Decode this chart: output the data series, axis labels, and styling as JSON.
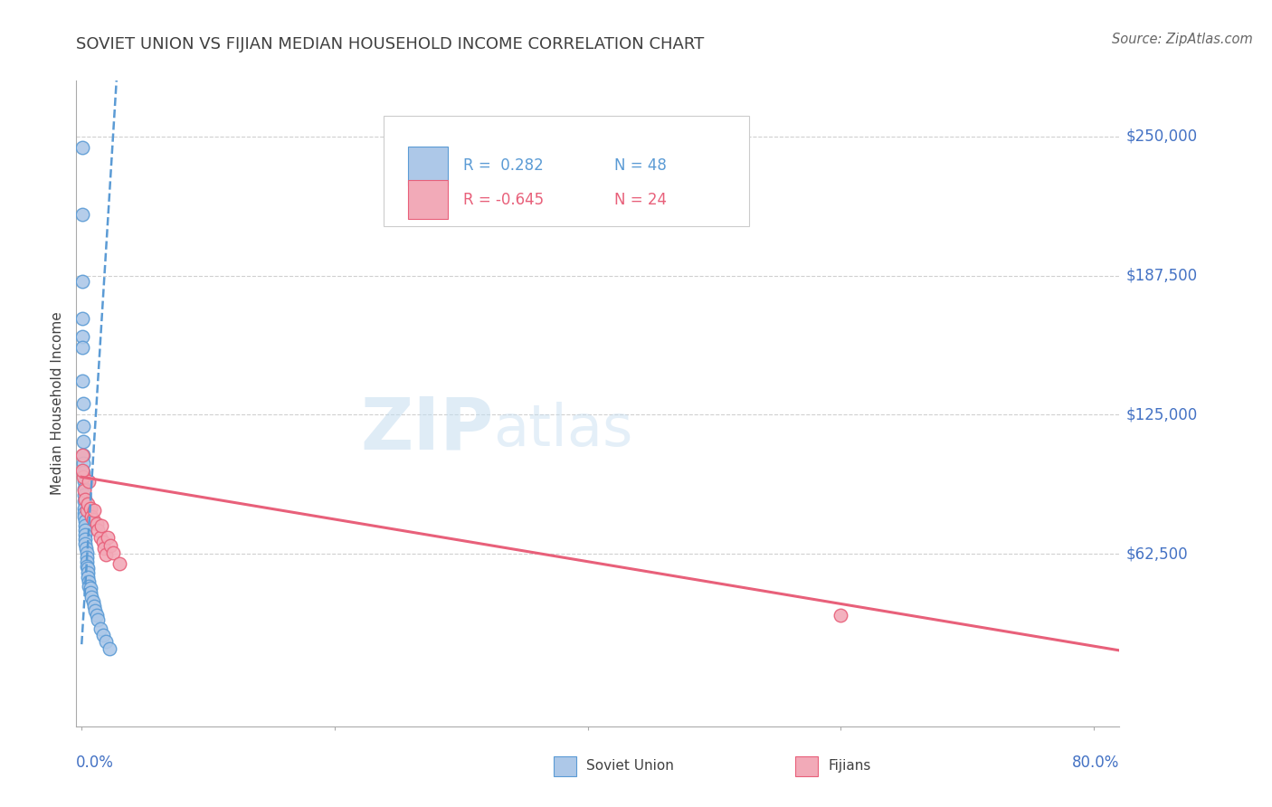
{
  "title": "SOVIET UNION VS FIJIAN MEDIAN HOUSEHOLD INCOME CORRELATION CHART",
  "source": "Source: ZipAtlas.com",
  "ylabel": "Median Household Income",
  "ytick_labels": [
    "",
    "$62,500",
    "$125,000",
    "$187,500",
    "$250,000"
  ],
  "ytick_values": [
    0,
    62500,
    125000,
    187500,
    250000
  ],
  "ylim": [
    -15000,
    275000
  ],
  "xlim": [
    -0.004,
    0.82
  ],
  "watermark_zip": "ZIP",
  "watermark_atlas": "atlas",
  "legend_r1": "R =  0.282",
  "legend_n1": "N = 48",
  "legend_r2": "R = -0.645",
  "legend_n2": "N = 24",
  "legend_label1": "Soviet Union",
  "legend_label2": "Fijians",
  "soviet_x": [
    0.0005,
    0.0008,
    0.001,
    0.001,
    0.001,
    0.0012,
    0.0013,
    0.0015,
    0.0015,
    0.0017,
    0.0018,
    0.002,
    0.002,
    0.002,
    0.002,
    0.0022,
    0.0023,
    0.0025,
    0.003,
    0.003,
    0.003,
    0.003,
    0.003,
    0.0032,
    0.0035,
    0.004,
    0.004,
    0.004,
    0.0045,
    0.005,
    0.005,
    0.005,
    0.006,
    0.006,
    0.007,
    0.007,
    0.008,
    0.009,
    0.01,
    0.011,
    0.012,
    0.013,
    0.015,
    0.017,
    0.019,
    0.022,
    0.001,
    0.001
  ],
  "soviet_y": [
    245000,
    215000,
    185000,
    160000,
    140000,
    130000,
    120000,
    113000,
    107000,
    103000,
    99000,
    95000,
    92000,
    89000,
    86000,
    83000,
    81000,
    79000,
    77000,
    75000,
    73000,
    71000,
    69000,
    67000,
    65000,
    63000,
    61000,
    59000,
    57000,
    56000,
    54000,
    52000,
    50000,
    48000,
    47000,
    45000,
    43000,
    41000,
    39000,
    37000,
    35000,
    33000,
    29000,
    26000,
    23000,
    20000,
    155000,
    168000
  ],
  "fijian_x": [
    0.001,
    0.0015,
    0.002,
    0.003,
    0.004,
    0.005,
    0.006,
    0.007,
    0.008,
    0.009,
    0.01,
    0.012,
    0.013,
    0.015,
    0.016,
    0.017,
    0.018,
    0.019,
    0.021,
    0.023,
    0.025,
    0.03,
    0.6,
    0.0008
  ],
  "fijian_y": [
    107000,
    97000,
    91000,
    87000,
    82000,
    85000,
    95000,
    83000,
    79000,
    78000,
    82000,
    76000,
    73000,
    70000,
    75000,
    68000,
    65000,
    62000,
    70000,
    66000,
    63000,
    58000,
    35000,
    100000
  ],
  "blue_color": "#adc8e8",
  "pink_color": "#f2aab8",
  "blue_line_color": "#5b9bd5",
  "pink_line_color": "#e8607a",
  "blue_trend_x0": 0.0002,
  "blue_trend_y0": 20000,
  "blue_trend_slope": 9200000,
  "pink_trend_x0": 0.0,
  "pink_trend_y0": 97000,
  "pink_trend_slope": -95000,
  "grid_color": "#d0d0d0",
  "axis_label_color": "#4472c4",
  "title_color": "#404040",
  "title_fontsize": 13,
  "source_color": "#666666"
}
